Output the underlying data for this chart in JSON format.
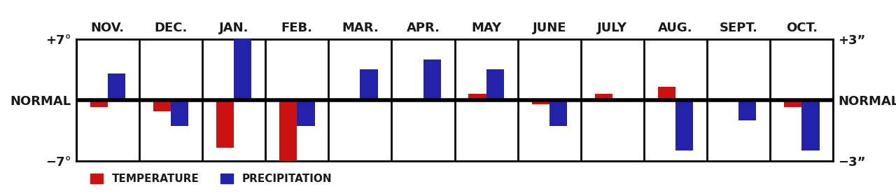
{
  "months": [
    "NOV.",
    "DEC.",
    "JAN.",
    "FEB.",
    "MAR.",
    "APR.",
    "MAY",
    "JUNE",
    "JULY",
    "AUG.",
    "SEPT.",
    "OCT."
  ],
  "temp_values": [
    -0.8,
    -1.3,
    -5.5,
    -7.0,
    0.0,
    0.0,
    0.7,
    -0.5,
    0.7,
    1.5,
    0.0,
    -0.8
  ],
  "precip_values_inch": [
    1.3,
    -1.3,
    3.0,
    -1.3,
    1.5,
    2.0,
    1.5,
    -1.3,
    0.0,
    -2.5,
    -1.0,
    -2.5
  ],
  "temp_color": "#cc1111",
  "precip_color": "#2222aa",
  "bg_color": "#ffffff",
  "text_color": "#1a1a1a",
  "bar_width": 0.28,
  "temp_ylim": [
    -7,
    7
  ],
  "precip_ylim": [
    -3,
    3
  ],
  "zero_lw": 4.0,
  "grid_lw": 2.0,
  "spine_lw": 2.0,
  "month_fontsize": 13,
  "axis_label_fontsize": 13,
  "legend_fontsize": 11
}
